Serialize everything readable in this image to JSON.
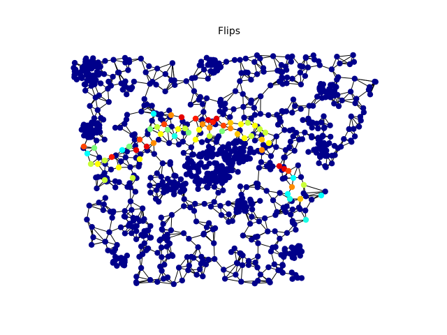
{
  "figure": {
    "title": "Flips"
  },
  "graph": {
    "type": "node-link",
    "colormap": "jet",
    "background_node_color": "#00008b",
    "edge_color": "#000000",
    "flip_colors": [
      "#00ffff",
      "#19ffe6",
      "#7dff7a",
      "#c8ff37",
      "#ffff00",
      "#ffc400",
      "#ff8c00",
      "#ff4500",
      "#ff1a00",
      "#e60000"
    ]
  }
}
